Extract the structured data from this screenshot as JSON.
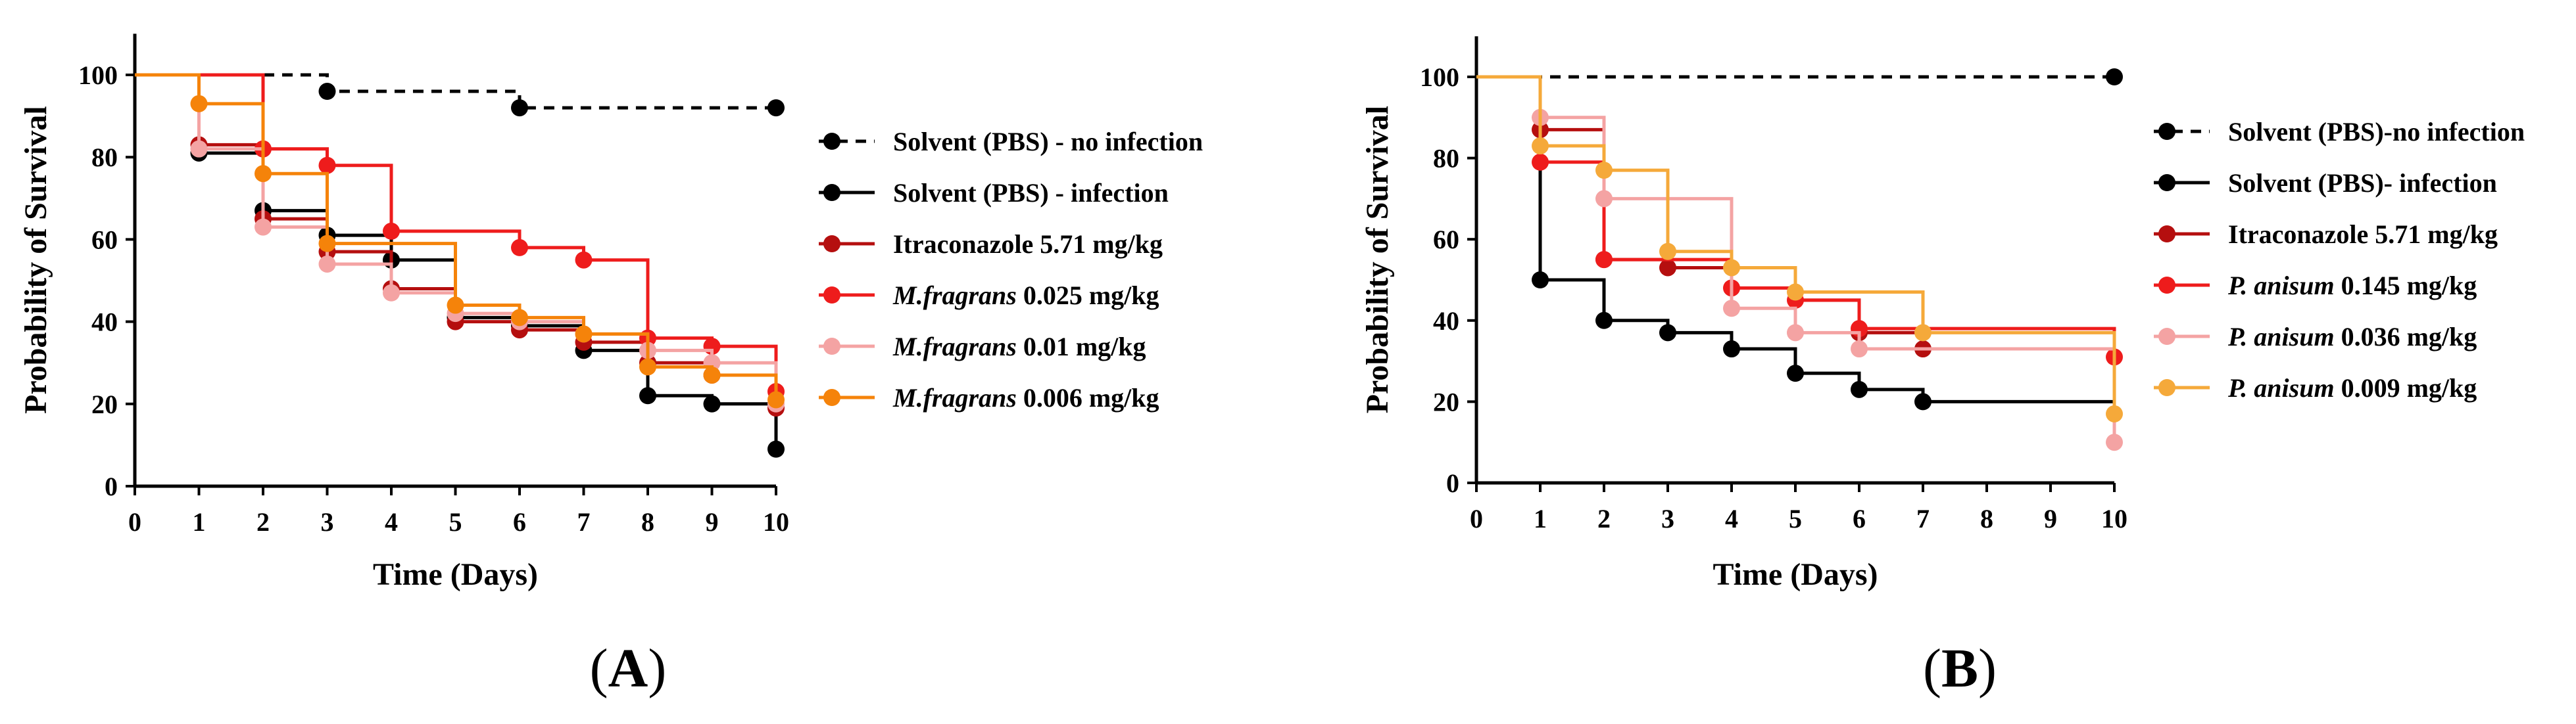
{
  "chart_data": [
    {
      "type": "line",
      "subtype": "kaplan-meier step survival",
      "panel_label": "A",
      "xlabel": "Time (Days)",
      "ylabel": "Probability of Survival",
      "xlim": [
        0,
        10
      ],
      "ylim": [
        0,
        110
      ],
      "x_ticks": [
        0,
        1,
        2,
        3,
        4,
        5,
        6,
        7,
        8,
        9,
        10
      ],
      "y_ticks": [
        0,
        20,
        40,
        60,
        80,
        100
      ],
      "legend_position": "right",
      "series": [
        {
          "name": "Solvent (PBS) - no infection",
          "name_italic": "",
          "name_rest": "Solvent (PBS) - no infection",
          "color": "#000000",
          "dashed": true,
          "steps": [
            [
              0,
              100
            ],
            [
              3,
              96
            ],
            [
              6,
              92
            ],
            [
              10,
              92
            ]
          ],
          "markers": [
            [
              3,
              96
            ],
            [
              6,
              92
            ],
            [
              10,
              92
            ]
          ]
        },
        {
          "name": "Solvent (PBS) - infection",
          "name_italic": "",
          "name_rest": "Solvent (PBS) - infection",
          "color": "#000000",
          "dashed": false,
          "steps": [
            [
              0,
              100
            ],
            [
              1,
              81
            ],
            [
              2,
              67
            ],
            [
              3,
              61
            ],
            [
              4,
              55
            ],
            [
              5,
              41
            ],
            [
              6,
              39
            ],
            [
              7,
              33
            ],
            [
              8,
              22
            ],
            [
              9,
              20
            ],
            [
              10,
              9
            ]
          ],
          "markers": [
            [
              1,
              81
            ],
            [
              2,
              67
            ],
            [
              3,
              61
            ],
            [
              4,
              55
            ],
            [
              5,
              41
            ],
            [
              6,
              39
            ],
            [
              7,
              33
            ],
            [
              8,
              22
            ],
            [
              9,
              20
            ],
            [
              10,
              9
            ]
          ]
        },
        {
          "name": "Itraconazole 5.71 mg/kg",
          "name_italic": "",
          "name_rest": "Itraconazole 5.71 mg/kg",
          "color": "#b50f0f",
          "dashed": false,
          "steps": [
            [
              0,
              100
            ],
            [
              1,
              83
            ],
            [
              2,
              65
            ],
            [
              3,
              57
            ],
            [
              4,
              48
            ],
            [
              5,
              40
            ],
            [
              6,
              38
            ],
            [
              7,
              35
            ],
            [
              8,
              30
            ],
            [
              9,
              27
            ],
            [
              10,
              19
            ]
          ],
          "markers": [
            [
              1,
              83
            ],
            [
              2,
              65
            ],
            [
              3,
              57
            ],
            [
              4,
              48
            ],
            [
              5,
              40
            ],
            [
              6,
              38
            ],
            [
              7,
              35
            ],
            [
              8,
              30
            ],
            [
              9,
              27
            ],
            [
              10,
              19
            ]
          ]
        },
        {
          "name": "M.fragrans 0.025 mg/kg",
          "name_italic": "M.fragrans",
          "name_rest": " 0.025 mg/kg",
          "color": "#ee1c1c",
          "dashed": false,
          "steps": [
            [
              0,
              100
            ],
            [
              2,
              82
            ],
            [
              3,
              78
            ],
            [
              4,
              62
            ],
            [
              6,
              58
            ],
            [
              7,
              55
            ],
            [
              8,
              36
            ],
            [
              9,
              34
            ],
            [
              10,
              23
            ]
          ],
          "markers": [
            [
              2,
              82
            ],
            [
              3,
              78
            ],
            [
              4,
              62
            ],
            [
              6,
              58
            ],
            [
              7,
              55
            ],
            [
              8,
              36
            ],
            [
              9,
              34
            ],
            [
              10,
              23
            ]
          ]
        },
        {
          "name": "M.fragrans 0.01 mg/kg",
          "name_italic": "M.fragrans",
          "name_rest": " 0.01 mg/kg",
          "color": "#f4a3a3",
          "dashed": false,
          "steps": [
            [
              0,
              100
            ],
            [
              1,
              82
            ],
            [
              2,
              63
            ],
            [
              3,
              54
            ],
            [
              4,
              47
            ],
            [
              5,
              42
            ],
            [
              6,
              40
            ],
            [
              7,
              37
            ],
            [
              8,
              33
            ],
            [
              9,
              30
            ],
            [
              10,
              20
            ]
          ],
          "markers": [
            [
              1,
              82
            ],
            [
              2,
              63
            ],
            [
              3,
              54
            ],
            [
              4,
              47
            ],
            [
              5,
              42
            ],
            [
              6,
              40
            ],
            [
              7,
              37
            ],
            [
              8,
              33
            ],
            [
              9,
              30
            ],
            [
              10,
              20
            ]
          ]
        },
        {
          "name": "M.fragrans 0.006 mg/kg",
          "name_italic": "M.fragrans",
          "name_rest": " 0.006 mg/kg",
          "color": "#f5830a",
          "dashed": false,
          "steps": [
            [
              0,
              100
            ],
            [
              1,
              93
            ],
            [
              2,
              76
            ],
            [
              3,
              59
            ],
            [
              5,
              44
            ],
            [
              6,
              41
            ],
            [
              7,
              37
            ],
            [
              8,
              29
            ],
            [
              9,
              27
            ],
            [
              10,
              21
            ]
          ],
          "markers": [
            [
              1,
              93
            ],
            [
              2,
              76
            ],
            [
              3,
              59
            ],
            [
              5,
              44
            ],
            [
              6,
              41
            ],
            [
              7,
              37
            ],
            [
              8,
              29
            ],
            [
              9,
              27
            ],
            [
              10,
              21
            ]
          ]
        }
      ]
    },
    {
      "type": "line",
      "subtype": "kaplan-meier step survival",
      "panel_label": "B",
      "xlabel": "Time (Days)",
      "ylabel": "Probability of Survival",
      "xlim": [
        0,
        10
      ],
      "ylim": [
        0,
        110
      ],
      "x_ticks": [
        0,
        1,
        2,
        3,
        4,
        5,
        6,
        7,
        8,
        9,
        10
      ],
      "y_ticks": [
        0,
        20,
        40,
        60,
        80,
        100
      ],
      "legend_position": "right",
      "series": [
        {
          "name": "Solvent (PBS)-no infection",
          "name_italic": "",
          "name_rest": "Solvent (PBS)-no infection",
          "color": "#000000",
          "dashed": true,
          "steps": [
            [
              0,
              100
            ],
            [
              10,
              100
            ]
          ],
          "markers": [
            [
              10,
              100
            ]
          ]
        },
        {
          "name": "Solvent (PBS)- infection",
          "name_italic": "",
          "name_rest": "Solvent (PBS)- infection",
          "color": "#000000",
          "dashed": false,
          "steps": [
            [
              0,
              100
            ],
            [
              1,
              50
            ],
            [
              2,
              40
            ],
            [
              3,
              37
            ],
            [
              4,
              33
            ],
            [
              5,
              27
            ],
            [
              6,
              23
            ],
            [
              7,
              20
            ],
            [
              10,
              20
            ]
          ],
          "markers": [
            [
              1,
              50
            ],
            [
              2,
              40
            ],
            [
              3,
              37
            ],
            [
              4,
              33
            ],
            [
              5,
              27
            ],
            [
              6,
              23
            ],
            [
              7,
              20
            ]
          ]
        },
        {
          "name": "Itraconazole 5.71 mg/kg",
          "name_italic": "",
          "name_rest": "Itraconazole 5.71 mg/kg",
          "color": "#b50f0f",
          "dashed": false,
          "steps": [
            [
              0,
              100
            ],
            [
              1,
              87
            ],
            [
              2,
              55
            ],
            [
              3,
              53
            ],
            [
              4,
              53
            ],
            [
              5,
              45
            ],
            [
              6,
              37
            ],
            [
              7,
              33
            ],
            [
              10,
              33
            ]
          ],
          "markers": [
            [
              1,
              87
            ],
            [
              2,
              55
            ],
            [
              3,
              53
            ],
            [
              6,
              37
            ],
            [
              7,
              33
            ]
          ]
        },
        {
          "name": "P. anisum 0.145 mg/kg",
          "name_italic": "P. anisum",
          "name_rest": " 0.145 mg/kg",
          "color": "#ee1c1c",
          "dashed": false,
          "steps": [
            [
              0,
              100
            ],
            [
              1,
              79
            ],
            [
              2,
              55
            ],
            [
              3,
              55
            ],
            [
              4,
              48
            ],
            [
              5,
              45
            ],
            [
              6,
              38
            ],
            [
              10,
              31
            ]
          ],
          "markers": [
            [
              1,
              79
            ],
            [
              2,
              55
            ],
            [
              4,
              48
            ],
            [
              5,
              45
            ],
            [
              6,
              38
            ],
            [
              10,
              31
            ]
          ]
        },
        {
          "name": "P. anisum 0.036 mg/kg",
          "name_italic": "P. anisum",
          "name_rest": " 0.036 mg/kg",
          "color": "#f4a3a3",
          "dashed": false,
          "steps": [
            [
              0,
              100
            ],
            [
              1,
              90
            ],
            [
              2,
              70
            ],
            [
              4,
              43
            ],
            [
              5,
              37
            ],
            [
              6,
              33
            ],
            [
              10,
              10
            ]
          ],
          "markers": [
            [
              1,
              90
            ],
            [
              2,
              70
            ],
            [
              4,
              43
            ],
            [
              5,
              37
            ],
            [
              6,
              33
            ],
            [
              10,
              10
            ]
          ]
        },
        {
          "name": "P. anisum 0.009 mg/kg",
          "name_italic": "P. anisum",
          "name_rest": " 0.009 mg/kg",
          "color": "#f5a93a",
          "dashed": false,
          "steps": [
            [
              0,
              100
            ],
            [
              1,
              83
            ],
            [
              2,
              77
            ],
            [
              3,
              57
            ],
            [
              4,
              53
            ],
            [
              5,
              47
            ],
            [
              7,
              37
            ],
            [
              10,
              17
            ]
          ],
          "markers": [
            [
              1,
              83
            ],
            [
              2,
              77
            ],
            [
              3,
              57
            ],
            [
              4,
              53
            ],
            [
              5,
              47
            ],
            [
              7,
              37
            ],
            [
              10,
              17
            ]
          ]
        }
      ]
    }
  ]
}
